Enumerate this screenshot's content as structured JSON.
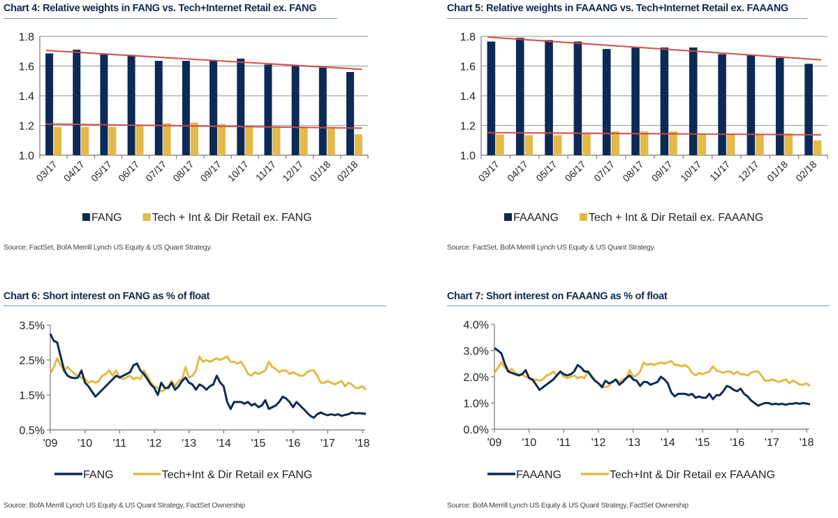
{
  "colors": {
    "primary": "#0b2a55",
    "secondary": "#e3b94a",
    "trend": "#cc4a4a",
    "grid": "#a6a6a6"
  },
  "chart_data": [
    {
      "id": "chart4",
      "type": "bar",
      "title": "Chart 4: Relative weights in FANG vs. Tech+Internet Retail ex. FANG",
      "categories": [
        "03/17",
        "04/17",
        "05/17",
        "06/17",
        "07/17",
        "08/17",
        "09/17",
        "10/17",
        "11/17",
        "12/17",
        "01/18",
        "02/18"
      ],
      "series": [
        {
          "name": "FANG",
          "values": [
            1.685,
            1.71,
            1.68,
            1.675,
            1.635,
            1.635,
            1.64,
            1.65,
            1.61,
            1.605,
            1.59,
            1.56
          ]
        },
        {
          "name": "Tech + Int & Dir Retail ex. FANG",
          "values": [
            1.19,
            1.19,
            1.19,
            1.2,
            1.215,
            1.22,
            1.21,
            1.195,
            1.19,
            1.19,
            1.19,
            1.14
          ]
        }
      ],
      "trendlines": [
        {
          "series": "FANG",
          "start": 1.705,
          "end": 1.578
        },
        {
          "series": "Tech + Int & Dir Retail ex. FANG",
          "start": 1.21,
          "end": 1.182
        }
      ],
      "yticks": [
        "1.0",
        "1.2",
        "1.4",
        "1.6",
        "1.8"
      ],
      "ylim": [
        1.0,
        1.8
      ],
      "xlabel": "",
      "ylabel": "",
      "grid": true,
      "legend": "bottom",
      "source": "Source: FactSet, BofA Merrill Lynch US Equity & US Quant Strategy."
    },
    {
      "id": "chart5",
      "type": "bar",
      "title": "Chart 5: Relative weights in FAAANG vs. Tech+Internet Retail ex. FAAANG",
      "categories": [
        "03/17",
        "04/17",
        "05/17",
        "06/17",
        "07/17",
        "08/17",
        "09/17",
        "10/17",
        "11/17",
        "12/17",
        "01/18",
        "02/18"
      ],
      "series": [
        {
          "name": "FAAANG",
          "values": [
            1.765,
            1.79,
            1.775,
            1.765,
            1.715,
            1.725,
            1.725,
            1.725,
            1.68,
            1.675,
            1.655,
            1.615
          ]
        },
        {
          "name": "Tech + Int & Dir Retail ex. FAAANG",
          "values": [
            1.14,
            1.135,
            1.135,
            1.145,
            1.16,
            1.16,
            1.16,
            1.145,
            1.14,
            1.14,
            1.145,
            1.1
          ]
        }
      ],
      "trendlines": [
        {
          "series": "FAAANG",
          "start": 1.795,
          "end": 1.642
        },
        {
          "series": "Tech + Int & Dir Retail ex. FAAANG",
          "start": 1.152,
          "end": 1.137
        }
      ],
      "yticks": [
        "1.0",
        "1.2",
        "1.4",
        "1.6",
        "1.8"
      ],
      "ylim": [
        1.0,
        1.8
      ],
      "xlabel": "",
      "ylabel": "",
      "grid": true,
      "legend": "bottom",
      "source": "Source: FactSet, BofA Merrill Lynch US Equity & US Quant Strategy."
    },
    {
      "id": "chart6",
      "type": "line",
      "title": "Chart 6: Short interest on FANG as % of float",
      "x": [
        2009.0,
        2009.1,
        2009.2,
        2009.3,
        2009.4,
        2009.5,
        2009.6,
        2009.7,
        2009.8,
        2009.9,
        2010.0,
        2010.1,
        2010.2,
        2010.3,
        2010.4,
        2010.5,
        2010.6,
        2010.7,
        2010.8,
        2010.9,
        2011.0,
        2011.1,
        2011.2,
        2011.3,
        2011.4,
        2011.5,
        2011.6,
        2011.7,
        2011.8,
        2011.9,
        2012.0,
        2012.1,
        2012.2,
        2012.3,
        2012.4,
        2012.5,
        2012.6,
        2012.7,
        2012.8,
        2012.9,
        2013.0,
        2013.1,
        2013.2,
        2013.3,
        2013.4,
        2013.5,
        2013.6,
        2013.7,
        2013.8,
        2013.9,
        2014.0,
        2014.1,
        2014.2,
        2014.3,
        2014.4,
        2014.5,
        2014.6,
        2014.7,
        2014.8,
        2014.9,
        2015.0,
        2015.1,
        2015.2,
        2015.3,
        2015.4,
        2015.5,
        2015.6,
        2015.7,
        2015.8,
        2015.9,
        2016.0,
        2016.1,
        2016.2,
        2016.3,
        2016.4,
        2016.5,
        2016.6,
        2016.7,
        2016.8,
        2016.9,
        2017.0,
        2017.1,
        2017.2,
        2017.3,
        2017.4,
        2017.5,
        2017.6,
        2017.7,
        2017.8,
        2017.9,
        2018.0,
        2018.1
      ],
      "series": [
        {
          "name": "FANG",
          "values": [
            3.25,
            3.05,
            3.0,
            2.6,
            2.2,
            2.05,
            2.0,
            1.98,
            2.0,
            2.2,
            1.85,
            1.75,
            1.6,
            1.45,
            1.55,
            1.65,
            1.75,
            1.85,
            1.95,
            2.05,
            2.0,
            2.05,
            2.1,
            2.15,
            2.35,
            2.4,
            2.2,
            2.1,
            1.95,
            1.8,
            1.7,
            1.5,
            1.85,
            1.7,
            1.7,
            1.85,
            1.65,
            1.75,
            1.9,
            2.0,
            1.85,
            1.8,
            1.65,
            1.8,
            1.75,
            1.65,
            1.75,
            1.8,
            2.05,
            1.85,
            1.75,
            1.3,
            1.1,
            1.3,
            1.3,
            1.3,
            1.25,
            1.3,
            1.2,
            1.25,
            1.15,
            1.2,
            1.35,
            1.1,
            1.15,
            1.2,
            1.3,
            1.45,
            1.4,
            1.3,
            1.15,
            1.3,
            1.2,
            1.1,
            1.0,
            0.9,
            0.85,
            0.95,
            1.0,
            0.95,
            0.92,
            0.95,
            0.92,
            0.95,
            0.9,
            0.93,
            0.95,
            1.0,
            0.97,
            0.98,
            0.97,
            0.96
          ]
        },
        {
          "name": "Tech+Int & Dir Retail ex FANG",
          "values": [
            2.1,
            2.3,
            2.55,
            2.35,
            2.2,
            2.3,
            2.2,
            2.1,
            2.05,
            2.0,
            1.95,
            1.85,
            1.9,
            1.85,
            1.9,
            2.05,
            2.1,
            2.2,
            2.05,
            2.2,
            2.0,
            1.95,
            2.0,
            2.05,
            1.95,
            2.0,
            1.95,
            2.2,
            2.05,
            1.85,
            1.75,
            1.7,
            1.6,
            1.65,
            1.75,
            1.9,
            1.75,
            1.9,
            1.95,
            2.3,
            2.0,
            2.05,
            2.2,
            2.6,
            2.45,
            2.5,
            2.45,
            2.5,
            2.55,
            2.5,
            2.55,
            2.6,
            2.45,
            2.45,
            2.4,
            2.45,
            2.3,
            2.1,
            2.05,
            2.15,
            2.1,
            2.15,
            2.2,
            2.45,
            2.3,
            2.25,
            2.15,
            2.2,
            2.2,
            2.1,
            2.15,
            2.1,
            2.05,
            2.05,
            2.15,
            2.2,
            2.2,
            2.05,
            1.85,
            1.85,
            1.9,
            1.85,
            1.8,
            1.85,
            1.9,
            1.75,
            1.85,
            1.8,
            1.7,
            1.7,
            1.75,
            1.65
          ]
        }
      ],
      "xticks": [
        "'09",
        "'10",
        "'11",
        "'12",
        "'13",
        "'14",
        "'15",
        "'16",
        "'17",
        "'18"
      ],
      "yticks": [
        "0.5%",
        "1.5%",
        "2.5%",
        "3.5%"
      ],
      "ylim": [
        0.5,
        3.5
      ],
      "xlim": [
        2009,
        2018
      ],
      "xlabel": "",
      "ylabel": "",
      "grid": false,
      "legend": "bottom",
      "source": "Source:  BofA Merrill Lynch US Equity & US Quant Strategy, FactSet Ownership"
    },
    {
      "id": "chart7",
      "type": "line",
      "title": "Chart 7: Short interest on FAAANG as % of float",
      "x": [
        2009.0,
        2009.1,
        2009.2,
        2009.3,
        2009.4,
        2009.5,
        2009.6,
        2009.7,
        2009.8,
        2009.9,
        2010.0,
        2010.1,
        2010.2,
        2010.3,
        2010.4,
        2010.5,
        2010.6,
        2010.7,
        2010.8,
        2010.9,
        2011.0,
        2011.1,
        2011.2,
        2011.3,
        2011.4,
        2011.5,
        2011.6,
        2011.7,
        2011.8,
        2011.9,
        2012.0,
        2012.1,
        2012.2,
        2012.3,
        2012.4,
        2012.5,
        2012.6,
        2012.7,
        2012.8,
        2012.9,
        2013.0,
        2013.1,
        2013.2,
        2013.3,
        2013.4,
        2013.5,
        2013.6,
        2013.7,
        2013.8,
        2013.9,
        2014.0,
        2014.1,
        2014.2,
        2014.3,
        2014.4,
        2014.5,
        2014.6,
        2014.7,
        2014.8,
        2014.9,
        2015.0,
        2015.1,
        2015.2,
        2015.3,
        2015.4,
        2015.5,
        2015.6,
        2015.7,
        2015.8,
        2015.9,
        2016.0,
        2016.1,
        2016.2,
        2016.3,
        2016.4,
        2016.5,
        2016.6,
        2016.7,
        2016.8,
        2016.9,
        2017.0,
        2017.1,
        2017.2,
        2017.3,
        2017.4,
        2017.5,
        2017.6,
        2017.7,
        2017.8,
        2017.9,
        2018.0,
        2018.1
      ],
      "series": [
        {
          "name": "FAAANG",
          "values": [
            3.1,
            3.0,
            2.9,
            2.5,
            2.2,
            2.15,
            2.1,
            2.05,
            2.1,
            2.25,
            1.95,
            1.9,
            1.7,
            1.5,
            1.6,
            1.7,
            1.8,
            1.9,
            2.05,
            2.2,
            2.1,
            2.05,
            2.1,
            2.2,
            2.45,
            2.35,
            2.2,
            2.2,
            2.0,
            1.85,
            1.75,
            1.6,
            1.85,
            1.75,
            1.8,
            1.9,
            1.7,
            1.8,
            1.95,
            2.05,
            1.9,
            1.85,
            1.65,
            1.8,
            1.8,
            1.7,
            1.75,
            1.8,
            2.0,
            1.9,
            1.75,
            1.4,
            1.25,
            1.35,
            1.35,
            1.35,
            1.3,
            1.35,
            1.2,
            1.25,
            1.2,
            1.2,
            1.35,
            1.15,
            1.3,
            1.3,
            1.45,
            1.65,
            1.6,
            1.5,
            1.45,
            1.55,
            1.35,
            1.25,
            1.1,
            1.0,
            0.9,
            0.95,
            1.0,
            1.0,
            0.95,
            0.97,
            0.95,
            0.97,
            0.93,
            0.97,
            0.97,
            1.0,
            0.97,
            1.0,
            0.98,
            0.95
          ]
        },
        {
          "name": "Tech+Int & Dir Retail ex FAAANG",
          "values": [
            2.15,
            2.35,
            2.55,
            2.35,
            2.2,
            2.3,
            2.15,
            2.1,
            2.1,
            2.0,
            1.95,
            1.85,
            1.9,
            1.85,
            1.9,
            2.05,
            2.1,
            2.2,
            2.05,
            2.2,
            2.0,
            1.95,
            2.0,
            2.05,
            1.95,
            2.0,
            1.95,
            2.2,
            2.05,
            1.85,
            1.75,
            1.65,
            1.6,
            1.65,
            1.8,
            1.9,
            1.8,
            1.9,
            1.95,
            2.25,
            2.0,
            2.05,
            2.2,
            2.55,
            2.45,
            2.5,
            2.45,
            2.5,
            2.55,
            2.5,
            2.55,
            2.6,
            2.45,
            2.45,
            2.4,
            2.45,
            2.35,
            2.15,
            2.05,
            2.15,
            2.1,
            2.15,
            2.2,
            2.4,
            2.25,
            2.2,
            2.15,
            2.2,
            2.2,
            2.1,
            2.2,
            2.1,
            2.1,
            2.05,
            2.15,
            2.2,
            2.2,
            2.05,
            1.85,
            1.85,
            1.9,
            1.85,
            1.8,
            1.85,
            1.9,
            1.75,
            1.85,
            1.8,
            1.7,
            1.7,
            1.75,
            1.65
          ]
        }
      ],
      "xticks": [
        "'09",
        "'10",
        "'11",
        "'12",
        "'13",
        "'14",
        "'15",
        "'16",
        "'17",
        "'18"
      ],
      "yticks": [
        "0.0%",
        "1.0%",
        "2.0%",
        "3.0%",
        "4.0%"
      ],
      "ylim": [
        0.0,
        4.0
      ],
      "xlim": [
        2009,
        2018
      ],
      "xlabel": "",
      "ylabel": "",
      "grid": false,
      "legend": "bottom",
      "source": "Source:  BofA Merrill Lynch US Equity & US Quant Strategy, FactSet Ownership"
    }
  ]
}
